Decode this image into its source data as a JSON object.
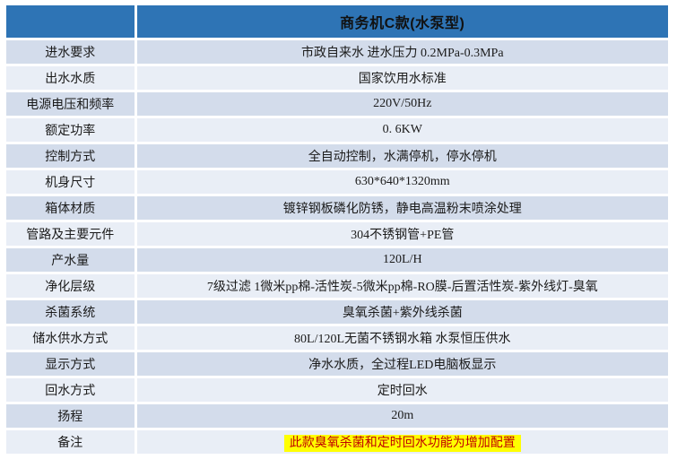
{
  "header": {
    "product_title": "商务机C款(水泵型)"
  },
  "colors": {
    "header_bg": "#2E74B5",
    "row_odd_bg": "#D3DCEB",
    "row_even_bg": "#E9EEF6",
    "note_highlight_bg": "#FFFF00",
    "note_text_color": "#C00000"
  },
  "table": {
    "rows": [
      {
        "label": "进水要求",
        "value": "市政自来水 进水压力 0.2MPa-0.3MPa",
        "highlight": false
      },
      {
        "label": "出水水质",
        "value": "国家饮用水标准",
        "highlight": false
      },
      {
        "label": "电源电压和频率",
        "value": "220V/50Hz",
        "highlight": false
      },
      {
        "label": "额定功率",
        "value": "0. 6KW",
        "highlight": false
      },
      {
        "label": "控制方式",
        "value": "全自动控制，水满停机，停水停机",
        "highlight": false
      },
      {
        "label": "机身尺寸",
        "value": "630*640*1320mm",
        "highlight": false
      },
      {
        "label": "箱体材质",
        "value": "镀锌钢板磷化防锈，静电高温粉末喷涂处理",
        "highlight": false
      },
      {
        "label": "管路及主要元件",
        "value": "304不锈钢管+PE管",
        "highlight": false
      },
      {
        "label": "产水量",
        "value": "120L/H",
        "highlight": false
      },
      {
        "label": "净化层级",
        "value": "7级过滤 1微米pp棉-活性炭-5微米pp棉-RO膜-后置活性炭-紫外线灯-臭氧",
        "highlight": false
      },
      {
        "label": "杀菌系统",
        "value": "臭氧杀菌+紫外线杀菌",
        "highlight": false
      },
      {
        "label": "储水供水方式",
        "value": "80L/120L无菌不锈钢水箱 水泵恒压供水",
        "highlight": false
      },
      {
        "label": "显示方式",
        "value": "净水水质，全过程LED电脑板显示",
        "highlight": false
      },
      {
        "label": "回水方式",
        "value": "定时回水",
        "highlight": false
      },
      {
        "label": "扬程",
        "value": "20m",
        "highlight": false
      },
      {
        "label": "备注",
        "value": "此款臭氧杀菌和定时回水功能为增加配置",
        "highlight": true
      }
    ]
  }
}
